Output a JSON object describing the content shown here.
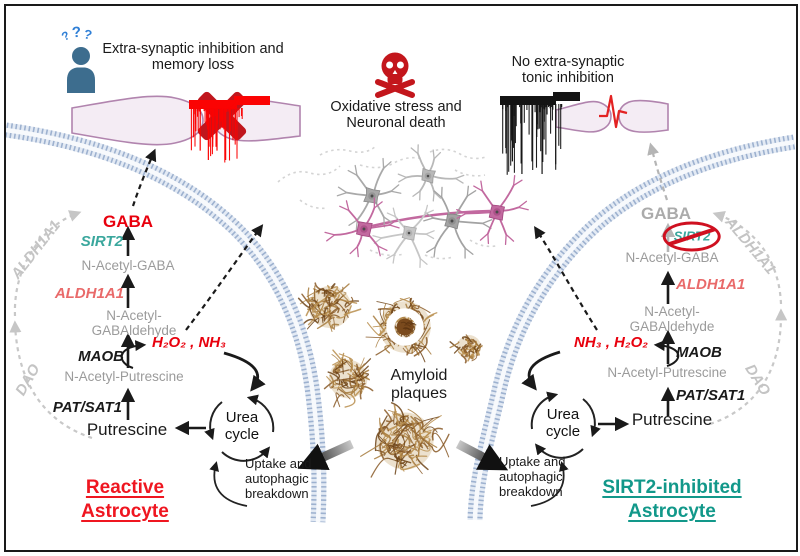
{
  "top_left": {
    "questions": {
      "q1": "?",
      "q2": "?",
      "q3": "?"
    },
    "caption": "Extra-synaptic inhibition and memory loss"
  },
  "center_top": {
    "caption": "Oxidative stress and Neuronal death"
  },
  "top_right": {
    "caption": "No extra-synaptic tonic inhibition"
  },
  "amyloid": {
    "label": "Amyloid plaques"
  },
  "left": {
    "gaba": "GABA",
    "sirt2": "SIRT2",
    "n_acetyl_gaba": "N-Acetyl-GABA",
    "aldh1a1": "ALDH1A1",
    "gabaldehyde_1": "N-Acetyl-",
    "gabaldehyde_2": "GABAldehyde",
    "byproducts": "H₂O₂ , NH₃",
    "maob": "MAOB",
    "n_acetyl_putrescine": "N-Acetyl-Putrescine",
    "pat_sat1": "PAT/SAT1",
    "putrescine": "Putrescine",
    "urea_cycle": "Urea cycle",
    "uptake": "Uptake and autophagic breakdown",
    "dao": "DAO",
    "aldh1a1_shunt": "ALDH1A1",
    "title": "Reactive Astrocyte"
  },
  "right": {
    "gaba": "GABA",
    "sirt2": "SIRT2",
    "n_acetyl_gaba": "N-Acetyl-GABA",
    "aldh1a1": "ALDH1A1",
    "gabaldehyde_1": "N-Acetyl-",
    "gabaldehyde_2": "GABAldehyde",
    "byproducts": "NH₃ , H₂O₂",
    "maob": "MAOB",
    "n_acetyl_putrescine": "N-Acetyl-Putrescine",
    "pat_sat1": "PAT/SAT1",
    "putrescine": "Putrescine",
    "urea_cycle": "Urea cycle",
    "uptake": "Uptake and autophagic breakdown",
    "dao": "DAO",
    "aldh1a1_shunt": "ALDH1A1",
    "title": "SIRT2-inhibited Astrocyte"
  },
  "palette": {
    "red_accent": "#e8000d",
    "dark_red": "#c0161d",
    "teal_accent": "#3aa79d",
    "teal_title": "#12988a",
    "salmon_enzyme": "#e96a6a",
    "gray_metabolite": "#9b9b9b",
    "membrane_blue": "#9db1cf",
    "synapse_pink": "#f4ecf4",
    "synapse_outline": "#b184ae",
    "neuron_pink": "#c2699f",
    "plaque_brown": "#8a5a28",
    "person_blue": "#3d6d8e",
    "question_blue": "#2f7fd6"
  }
}
